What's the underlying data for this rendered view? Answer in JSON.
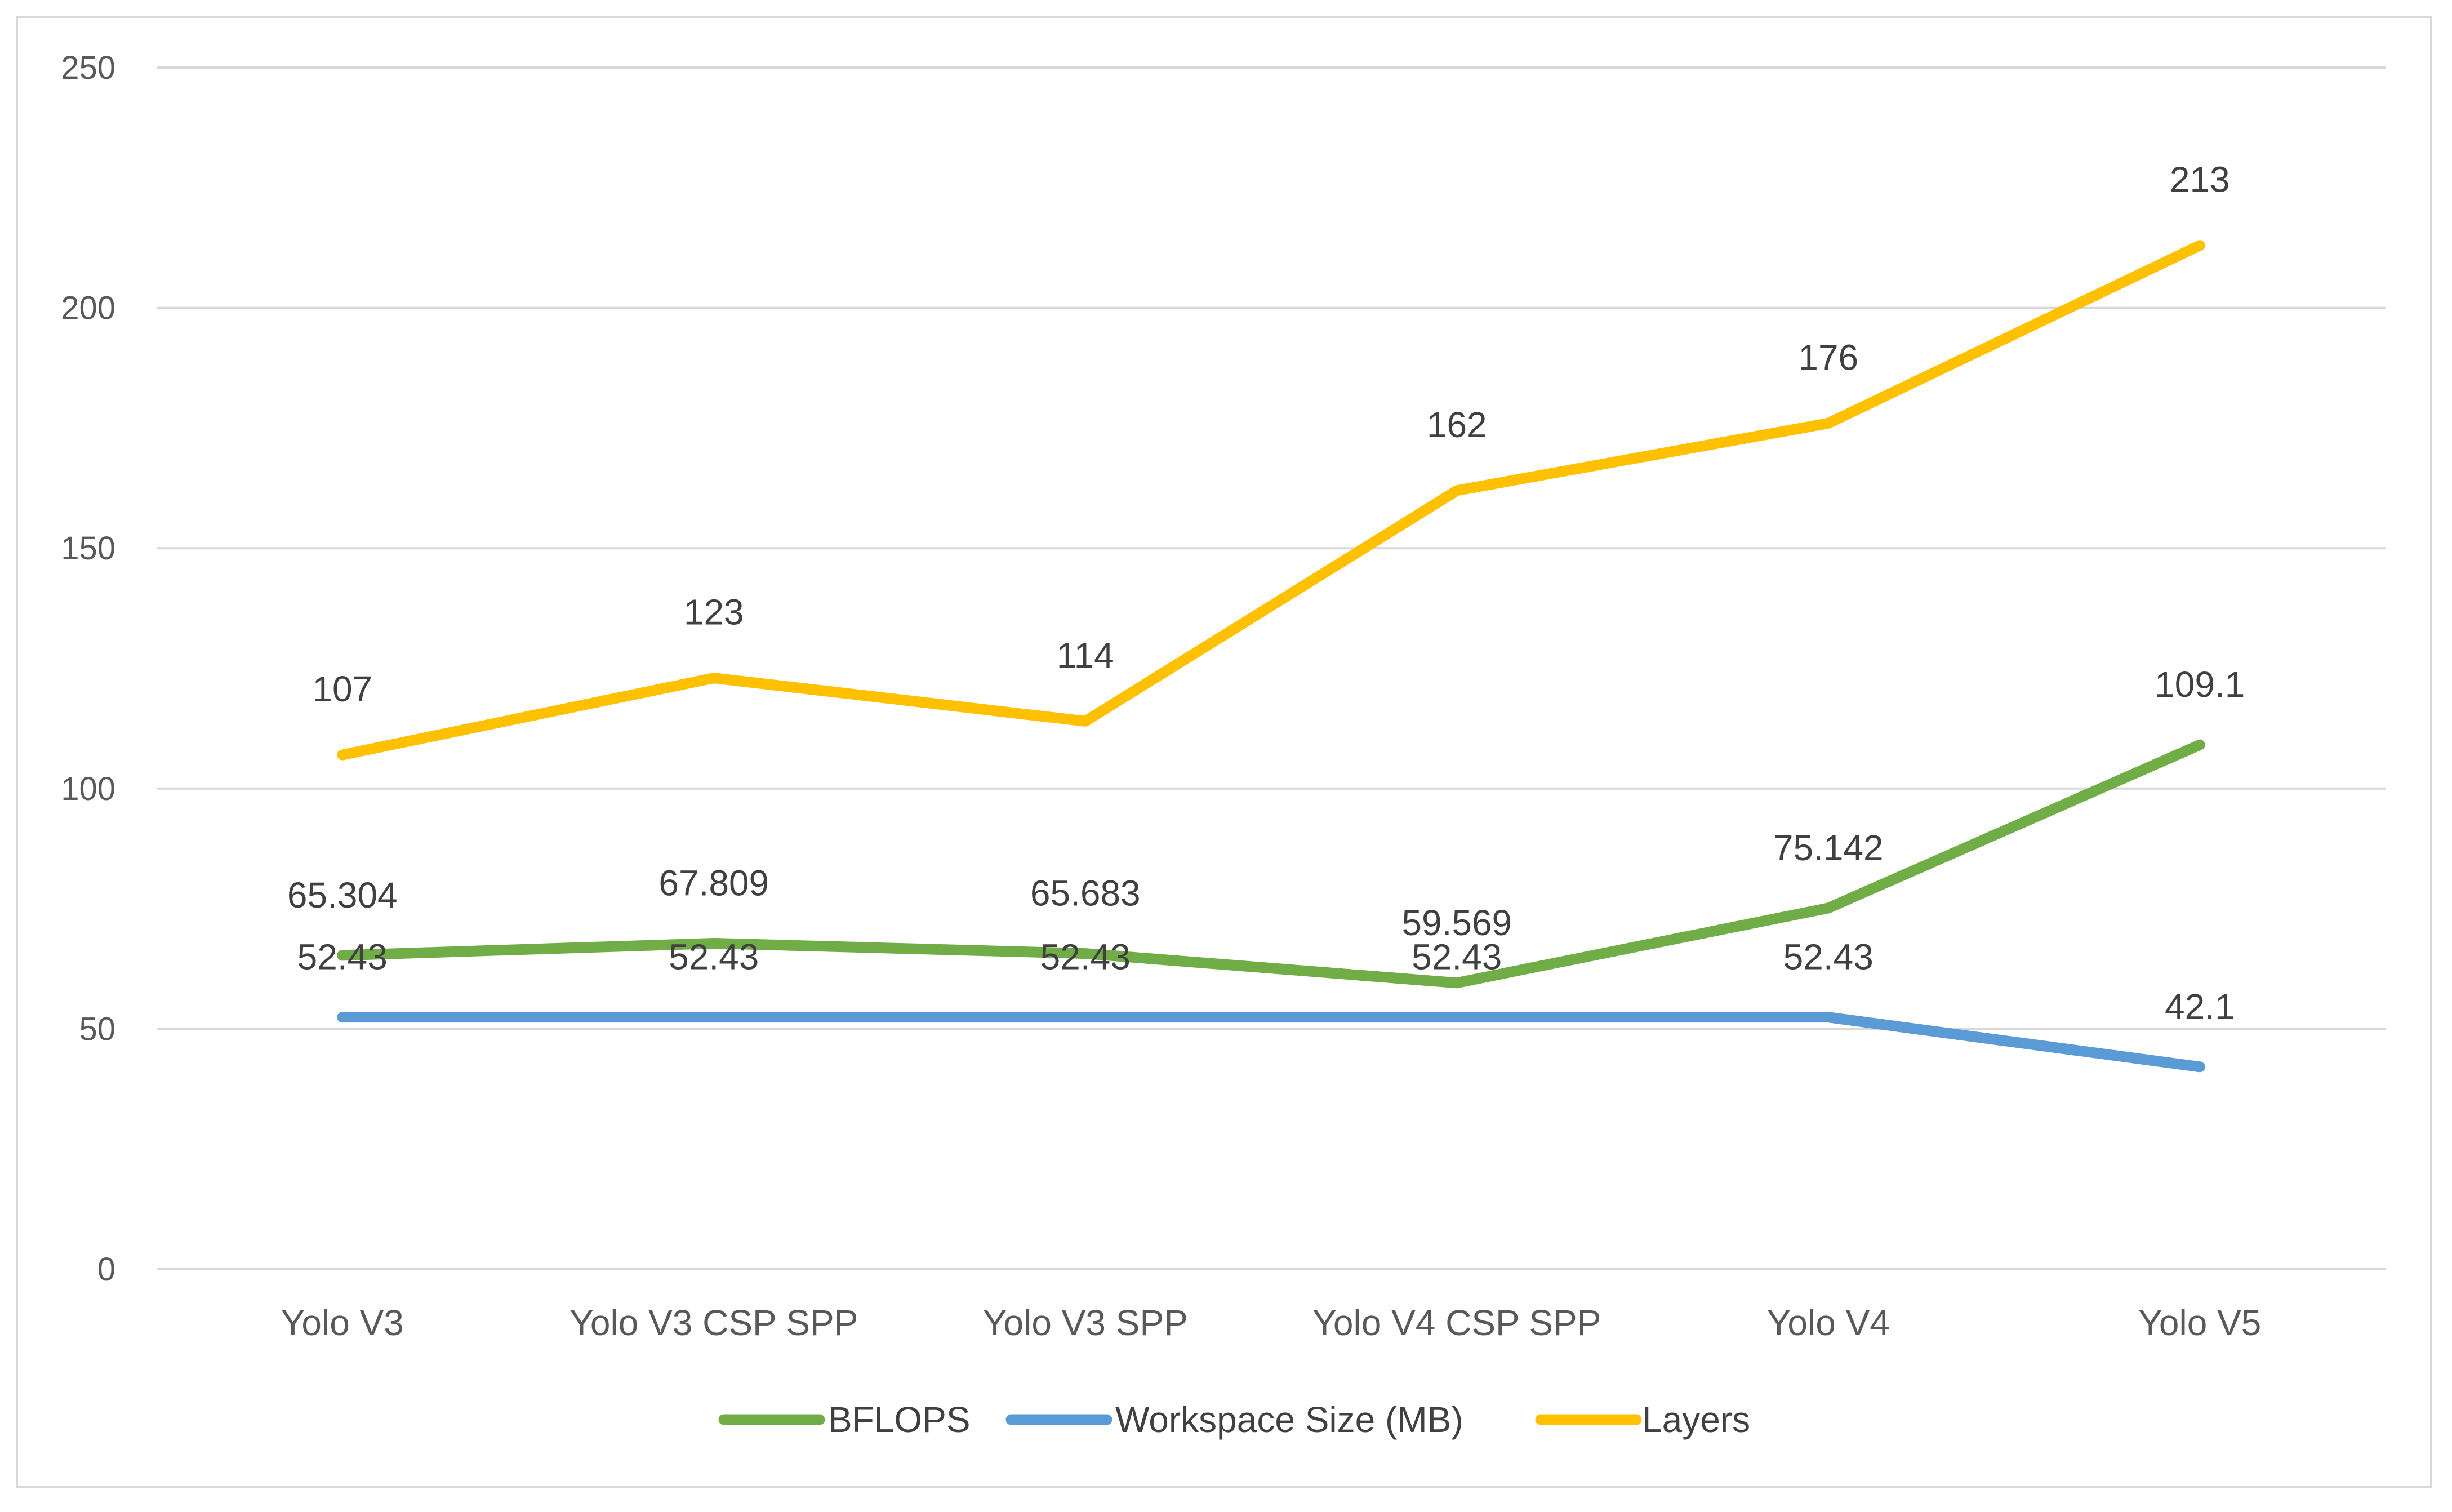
{
  "chart_data": {
    "type": "line",
    "title": "",
    "xlabel": "",
    "ylabel": "",
    "categories": [
      "Yolo V3",
      "Yolo V3 CSP SPP",
      "Yolo V3 SPP",
      "Yolo V4 CSP SPP",
      "Yolo V4",
      "Yolo V5"
    ],
    "ylim": [
      0,
      250
    ],
    "yticks": [
      0,
      50,
      100,
      150,
      200,
      250
    ],
    "grid": true,
    "legend_position": "bottom",
    "series": [
      {
        "name": "BFLOPS",
        "color": "#70ad47",
        "values": [
          65.304,
          67.809,
          65.683,
          59.569,
          75.142,
          109.1
        ],
        "labels": [
          "65.304",
          "67.809",
          "65.683",
          "59.569",
          "75.142",
          "109.1"
        ]
      },
      {
        "name": "Workspace Size (MB)",
        "color": "#5b9bd5",
        "values": [
          52.43,
          52.43,
          52.43,
          52.43,
          52.43,
          42.1
        ],
        "labels": [
          "52.43",
          "52.43",
          "52.43",
          "52.43",
          "52.43",
          "42.1"
        ]
      },
      {
        "name": "Layers",
        "color": "#ffc000",
        "values": [
          107,
          123,
          114,
          162,
          176,
          213
        ],
        "labels": [
          "107",
          "123",
          "114",
          "162",
          "176",
          "213"
        ]
      }
    ]
  }
}
